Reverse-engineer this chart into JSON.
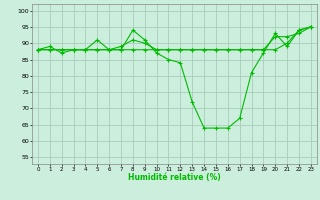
{
  "title": "",
  "xlabel": "Humidité relative (%)",
  "ylabel": "",
  "background_color": "#cceedd",
  "grid_color": "#aaccbb",
  "line_color": "#00bb00",
  "xlim": [
    -0.5,
    23.5
  ],
  "ylim": [
    53,
    102
  ],
  "xticks": [
    0,
    1,
    2,
    3,
    4,
    5,
    6,
    7,
    8,
    9,
    10,
    11,
    12,
    13,
    14,
    15,
    16,
    17,
    18,
    19,
    20,
    21,
    22,
    23
  ],
  "yticks": [
    55,
    60,
    65,
    70,
    75,
    80,
    85,
    90,
    95,
    100
  ],
  "series": [
    [
      88,
      88,
      88,
      88,
      88,
      91,
      88,
      88,
      94,
      91,
      87,
      85,
      84,
      72,
      64,
      64,
      64,
      67,
      81,
      87,
      93,
      89,
      94,
      95
    ],
    [
      88,
      89,
      87,
      88,
      88,
      88,
      88,
      89,
      91,
      90,
      88,
      88,
      88,
      88,
      88,
      88,
      88,
      88,
      88,
      88,
      92,
      92,
      93,
      95
    ],
    [
      88,
      88,
      88,
      88,
      88,
      88,
      88,
      88,
      88,
      88,
      88,
      88,
      88,
      88,
      88,
      88,
      88,
      88,
      88,
      88,
      88,
      90,
      94,
      95
    ]
  ]
}
